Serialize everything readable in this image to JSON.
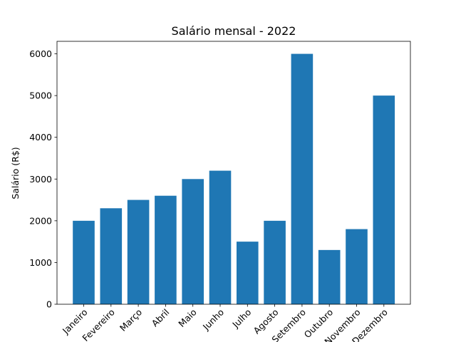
{
  "chart_data": {
    "type": "bar",
    "title": "Salário mensal - 2022",
    "xlabel": "",
    "ylabel": "Salário (R$)",
    "categories": [
      "Janeiro",
      "Fevereiro",
      "Março",
      "Abril",
      "Maio",
      "Junho",
      "Julho",
      "Agosto",
      "Setembro",
      "Outubro",
      "Novembro",
      "Dezembro"
    ],
    "values": [
      2000,
      2300,
      2500,
      2600,
      3000,
      3200,
      1500,
      2000,
      6000,
      1300,
      1800,
      5000
    ],
    "ylim": [
      0,
      6300
    ],
    "yticks": [
      0,
      1000,
      2000,
      3000,
      4000,
      5000,
      6000
    ],
    "grid": false,
    "bar_color": "#1f77b4"
  }
}
